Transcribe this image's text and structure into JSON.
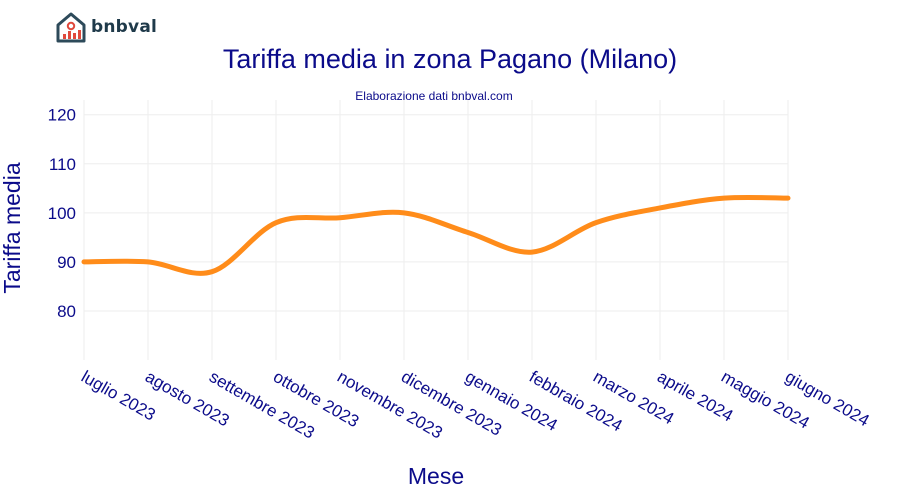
{
  "brand": {
    "name": "bnbval",
    "logo_icon": "house-chart-icon",
    "logo_color": "#2d4a5a",
    "logo_accent": "#e0493c"
  },
  "chart_data": {
    "type": "line",
    "title": "Tariffa media in zona Pagano (Milano)",
    "subtitle": "Elaborazione dati bnbval.com",
    "xlabel": "Mese",
    "ylabel": "Tariffa media",
    "categories": [
      "luglio 2023",
      "agosto 2023",
      "settembre 2023",
      "ottobre 2023",
      "novembre 2023",
      "dicembre 2023",
      "gennaio 2024",
      "febbraio 2024",
      "marzo 2024",
      "aprile 2024",
      "maggio 2024",
      "giugno 2024"
    ],
    "series": [
      {
        "values": [
          90,
          90,
          88,
          98,
          99,
          100,
          96,
          92,
          98,
          101,
          103,
          103
        ],
        "color": "#ff8c1a"
      }
    ],
    "yticks": [
      80,
      90,
      100,
      110,
      120
    ],
    "ylim": [
      70,
      123
    ],
    "grid": true,
    "text_color": "#0b0b8a"
  }
}
